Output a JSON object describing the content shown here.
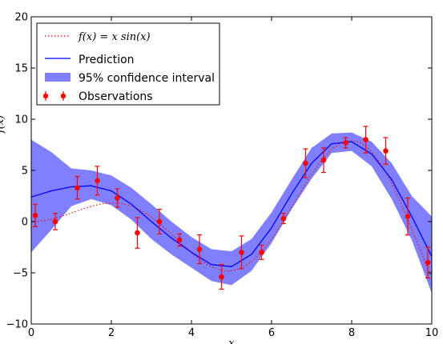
{
  "chart_data": {
    "type": "scatter",
    "title": "",
    "xlabel": "x",
    "ylabel": "f(x)",
    "xlim": [
      0,
      10
    ],
    "ylim": [
      -10,
      20
    ],
    "grid": false,
    "legend_position": "top-left",
    "x_ticks": [
      0,
      2,
      4,
      6,
      8,
      10
    ],
    "x_tick_labels": [
      "0",
      "2",
      "4",
      "6",
      "8",
      "10"
    ],
    "y_ticks": [
      -10,
      -5,
      0,
      5,
      10,
      15,
      20
    ],
    "y_tick_labels": [
      "−10",
      "−5",
      "0",
      "5",
      "10",
      "15",
      "20"
    ],
    "legend": {
      "true_function_label": "f(x) = x sin(x)",
      "prediction_label": "Prediction",
      "interval_label": "95% confidence interval",
      "observations_label": "Observations"
    },
    "colors": {
      "true_function": "#ff0000",
      "prediction": "#0000ff",
      "interval_fill": "#7f7fff",
      "observations": "#ff0000",
      "background": "#ffffff"
    },
    "series": [
      {
        "name": "f(x) = x sin(x)",
        "kind": "dotted-line",
        "function": "x*sin(x)"
      },
      {
        "name": "Prediction",
        "kind": "line",
        "x": [
          0,
          0.5,
          1,
          1.5,
          2,
          2.5,
          3,
          3.5,
          4,
          4.5,
          5,
          5.5,
          6,
          6.5,
          7,
          7.5,
          8,
          8.5,
          9,
          9.5,
          10
        ],
        "y": [
          2.4,
          3.0,
          3.4,
          3.5,
          3.0,
          1.7,
          0.0,
          -1.6,
          -3.0,
          -4.2,
          -4.4,
          -3.2,
          -0.6,
          2.7,
          5.7,
          7.6,
          7.8,
          6.6,
          4.1,
          0.5,
          -3.4
        ],
        "upper": [
          8.0,
          6.8,
          5.2,
          5.0,
          4.5,
          3.3,
          1.7,
          0.0,
          -1.5,
          -2.7,
          -2.9,
          -1.7,
          0.9,
          4.1,
          7.2,
          8.6,
          8.7,
          7.8,
          5.7,
          2.5,
          0.5
        ],
        "lower": [
          -3.0,
          -0.8,
          1.5,
          2.2,
          1.6,
          0.2,
          -1.7,
          -3.2,
          -4.5,
          -5.8,
          -6.2,
          -4.8,
          -2.1,
          1.2,
          4.2,
          6.7,
          6.9,
          5.4,
          2.2,
          -1.8,
          -7.0
        ]
      },
      {
        "name": "Observations",
        "kind": "errorbar",
        "x": [
          0.1,
          0.6,
          1.15,
          1.65,
          2.15,
          2.65,
          3.2,
          3.7,
          4.2,
          4.75,
          5.25,
          5.75,
          6.3,
          6.85,
          7.3,
          7.85,
          8.35,
          8.85,
          9.4,
          9.9
        ],
        "y": [
          0.6,
          0.0,
          3.3,
          4.0,
          2.3,
          -1.1,
          0.0,
          -1.8,
          -2.7,
          -5.4,
          -3.0,
          -3.0,
          0.3,
          5.7,
          6.0,
          7.7,
          8.0,
          6.9,
          0.5,
          -4.0
        ],
        "err": [
          1.1,
          0.8,
          1.1,
          1.4,
          0.9,
          1.5,
          1.2,
          0.6,
          1.4,
          1.2,
          1.6,
          0.7,
          0.5,
          1.4,
          1.2,
          0.5,
          1.3,
          1.3,
          1.8,
          1.5
        ]
      }
    ]
  }
}
